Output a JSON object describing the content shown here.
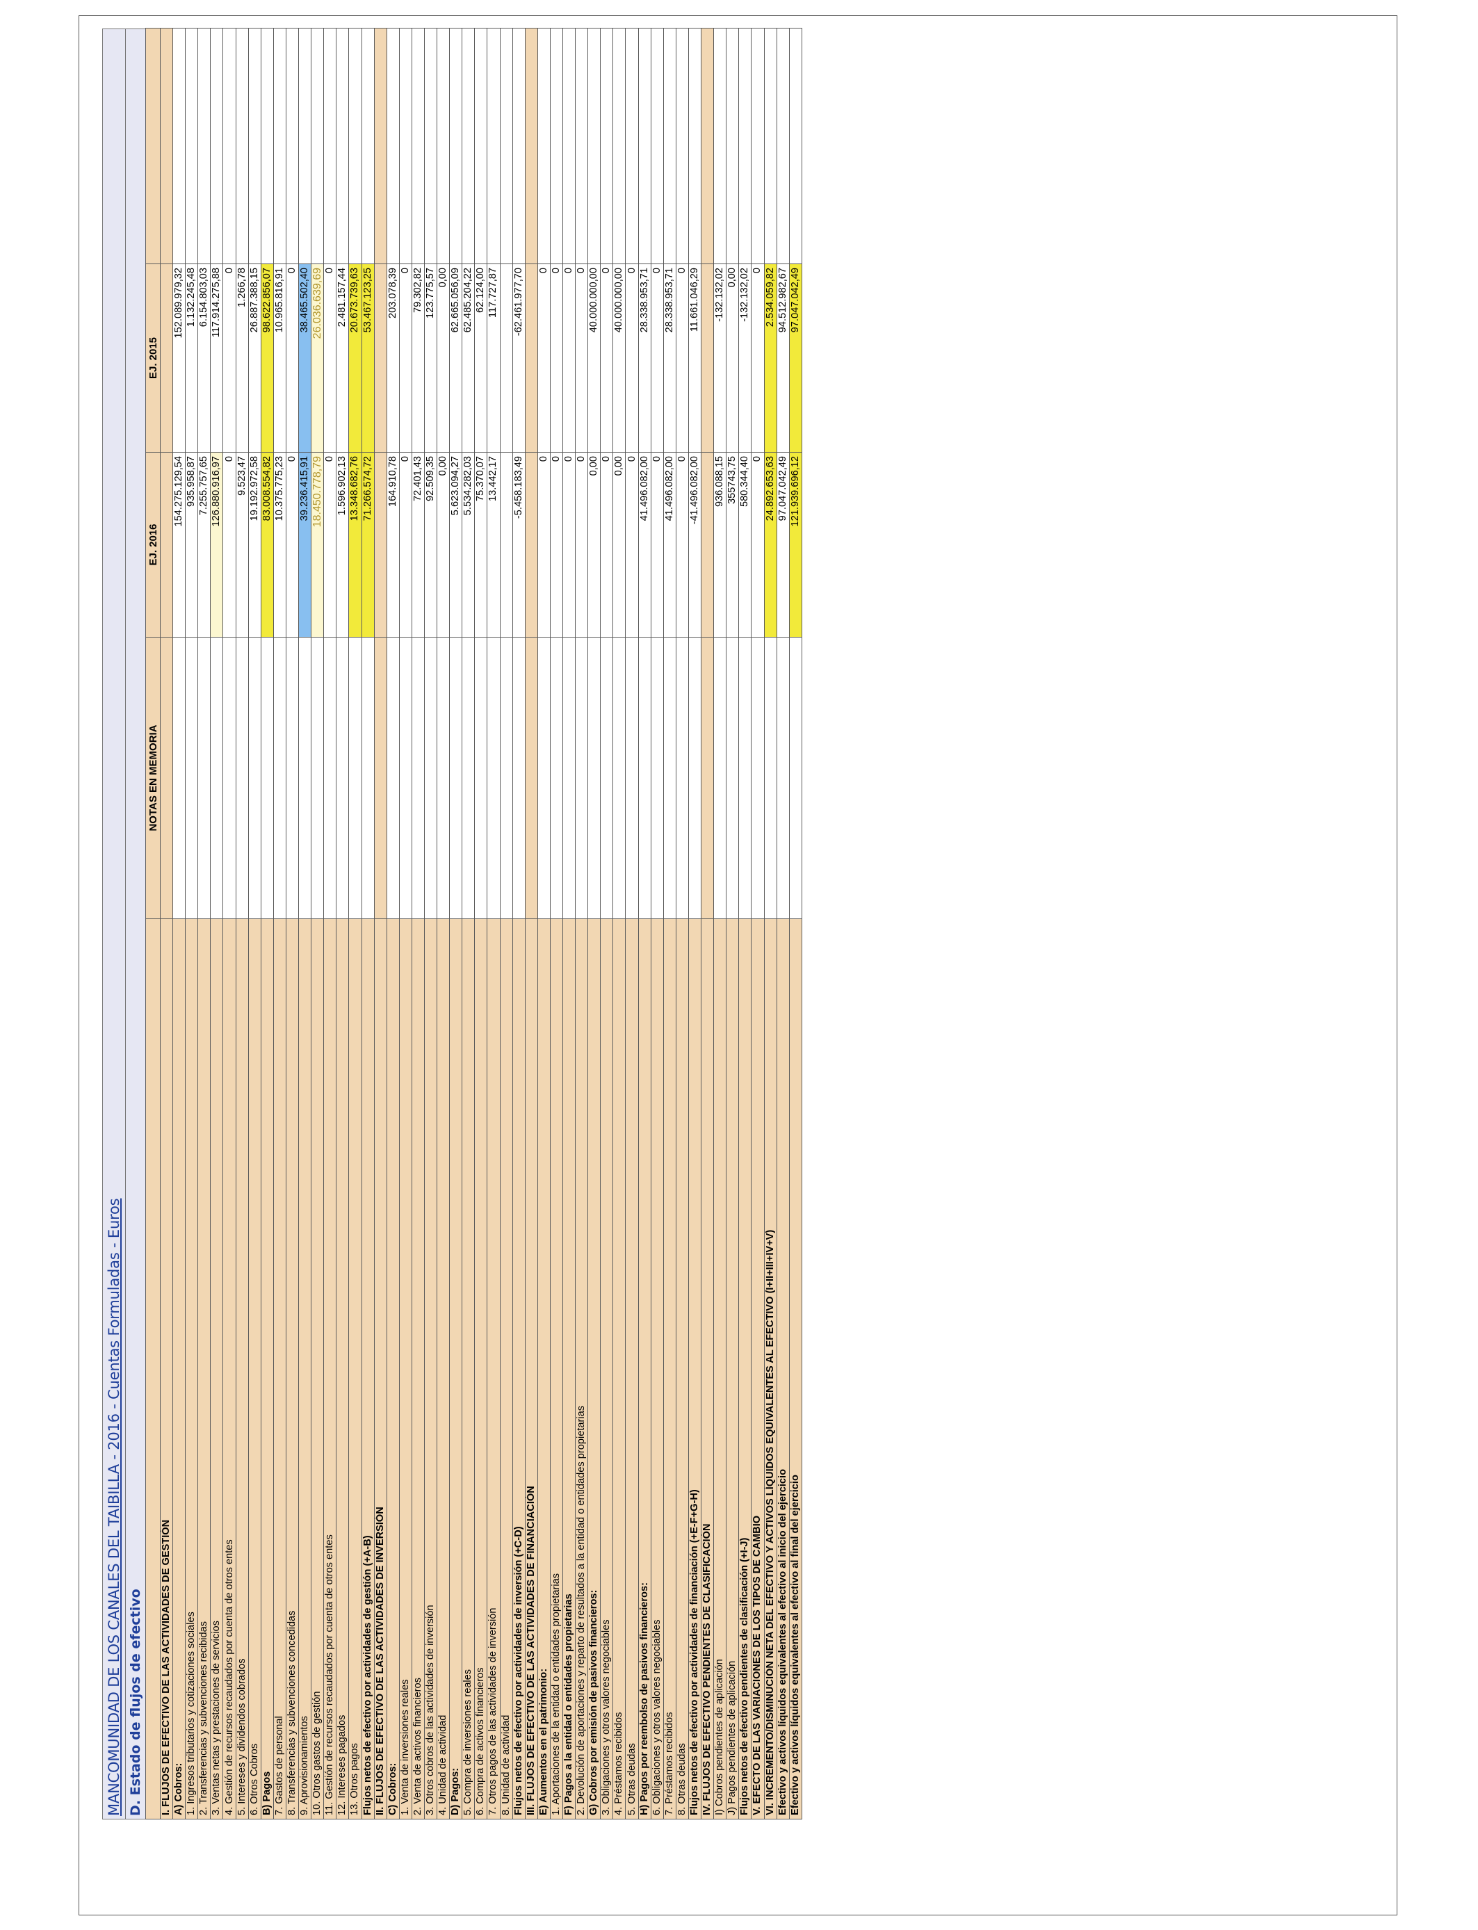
{
  "header": {
    "title": "MANCOMUNIDAD DE LOS CANALES DEL TAIBILLA - 2016 - Cuentas Formuladas - Euros",
    "subtitle": "D. Estado de flujos de efectivo"
  },
  "columns": {
    "notes": "NOTAS EN MEMORIA",
    "y2016": "EJ. 2016",
    "y2015": "EJ. 2015"
  },
  "rows": [
    {
      "label": "I. FLUJOS DE EFECTIVO DE LAS ACTIVIDADES DE GESTIÓN",
      "v2016": "",
      "v2015": "",
      "style": "section"
    },
    {
      "label": "A) Cobros:",
      "v2016": "154.275.129,54",
      "v2015": "152.089.979,32",
      "style": "bold"
    },
    {
      "label": "1. Ingresos tributarios y cotizaciones sociales",
      "v2016": "935.958,87",
      "v2015": "1.132.245,48",
      "style": ""
    },
    {
      "label": "2. Transferencias y subvenciones recibidas",
      "v2016": "7.255.757,65",
      "v2015": "6.154.803,03",
      "style": ""
    },
    {
      "label": "3. Ventas netas y prestaciones de servicios",
      "v2016": "126.880.916,97",
      "v2015": "117.914.275,88",
      "style": "",
      "hl2016": "lightyellow"
    },
    {
      "label": "4. Gestión de recursos recaudados por cuenta de otros entes",
      "v2016": "0",
      "v2015": "0",
      "style": ""
    },
    {
      "label": "5. Intereses y dividendos cobrados",
      "v2016": "9.523,47",
      "v2015": "1.266,78",
      "style": ""
    },
    {
      "label": "6. Otros Cobros",
      "v2016": "19.192.972,58",
      "v2015": "26.887.388,15",
      "style": ""
    },
    {
      "label": "B) Pagos",
      "v2016": "83.008.554,82",
      "v2015": "98.622.856,07",
      "style": "bold",
      "hl2016": "yellow",
      "hl2015": "yellow"
    },
    {
      "label": "7. Gastos de personal",
      "v2016": "10.375.775,23",
      "v2015": "10.965.816,91",
      "style": ""
    },
    {
      "label": "8. Transferencias y subvenciones concedidas",
      "v2016": "0",
      "v2015": "0",
      "style": ""
    },
    {
      "label": "9. Aprovisionamientos",
      "v2016": "39.236.415,91",
      "v2015": "38.465.502,40",
      "style": "",
      "hl2016": "blue",
      "hl2015": "blue"
    },
    {
      "label": "10. Otros gastos de gestión",
      "v2016": "18.450.778,79",
      "v2015": "26.036.639,69",
      "style": "",
      "hl2016": "lightyellow",
      "hl2015": "lightyellow",
      "gold": true
    },
    {
      "label": "11. Gestión de recursos recaudados por cuenta de otros entes",
      "v2016": "0",
      "v2015": "0",
      "style": ""
    },
    {
      "label": "12. Intereses pagados",
      "v2016": "1.596.902,13",
      "v2015": "2.481.157,44",
      "style": ""
    },
    {
      "label": "13. Otros pagos",
      "v2016": "13.348.682,76",
      "v2015": "20.673.739,63",
      "style": "",
      "hl2016": "yellow",
      "hl2015": "yellow"
    },
    {
      "label": "Flujos netos de efectivo por actividades de gestión (+A-B)",
      "v2016": "71.266.574,72",
      "v2015": "53.467.123,25",
      "style": "bold",
      "hl2016": "yellow",
      "hl2015": "yellow"
    },
    {
      "label": "II. FLUJOS DE EFECTIVO DE LAS ACTIVIDADES DE INVERSIÓN",
      "v2016": "",
      "v2015": "",
      "style": "section"
    },
    {
      "label": "C) Cobros:",
      "v2016": "164.910,78",
      "v2015": "203.078,39",
      "style": "bold"
    },
    {
      "label": "1. Venta de inversiones reales",
      "v2016": "0",
      "v2015": "0",
      "style": ""
    },
    {
      "label": "2. Venta de activos financieros",
      "v2016": "72.401,43",
      "v2015": "79.302,82",
      "style": ""
    },
    {
      "label": "3. Otros cobros de las actividades de inversión",
      "v2016": "92.509,35",
      "v2015": "123.775,57",
      "style": ""
    },
    {
      "label": "4. Unidad de actividad",
      "v2016": "0,00",
      "v2015": "0,00",
      "style": ""
    },
    {
      "label": "D) Pagos:",
      "v2016": "5.623.094,27",
      "v2015": "62.665.056,09",
      "style": "bold"
    },
    {
      "label": "5. Compra de inversiones reales",
      "v2016": "5.534.282,03",
      "v2015": "62.485.204,22",
      "style": ""
    },
    {
      "label": "6. Compra de activos financieros",
      "v2016": "75.370,07",
      "v2015": "62.124,00",
      "style": ""
    },
    {
      "label": "7. Otros pagos de las actividades de inversión",
      "v2016": "13.442,17",
      "v2015": "117.727,87",
      "style": ""
    },
    {
      "label": "8. Unidad de actividad",
      "v2016": "",
      "v2015": "",
      "style": ""
    },
    {
      "label": "Flujos netos de efectivo por actividades de inversión (+C-D)",
      "v2016": "-5.458.183,49",
      "v2015": "-62.461.977,70",
      "style": "bold"
    },
    {
      "label": "III. FLUJOS DE EFECTIVO DE LAS ACTIVIDADES DE FINANCIACIÓN",
      "v2016": "",
      "v2015": "",
      "style": "section"
    },
    {
      "label": "E) Aumentos en el patrimonio:",
      "v2016": "0",
      "v2015": "0",
      "style": "bold"
    },
    {
      "label": "1. Aportaciones de la entidad o entidades propietarias",
      "v2016": "0",
      "v2015": "0",
      "style": ""
    },
    {
      "label": "F) Pagos a la entidad o entidades propietarias",
      "v2016": "0",
      "v2015": "0",
      "style": "bold"
    },
    {
      "label": "2. Devolución de aportaciones y reparto de resultados a la entidad o entidades propietarias",
      "v2016": "0",
      "v2015": "0",
      "style": ""
    },
    {
      "label": "G) Cobros por emisión de pasivos financieros:",
      "v2016": "0,00",
      "v2015": "40.000.000,00",
      "style": "bold"
    },
    {
      "label": "3. Obligaciones y otros valores negociables",
      "v2016": "0",
      "v2015": "0",
      "style": ""
    },
    {
      "label": "4. Préstamos recibidos",
      "v2016": "0,00",
      "v2015": "40.000.000,00",
      "style": ""
    },
    {
      "label": "5. Otras deudas",
      "v2016": "0",
      "v2015": "0",
      "style": ""
    },
    {
      "label": "H) Pagos por reembolso de pasivos financieros:",
      "v2016": "41.496.082,00",
      "v2015": "28.338.953,71",
      "style": "bold"
    },
    {
      "label": "6. Obligaciones y otros valores negociables",
      "v2016": "0",
      "v2015": "0",
      "style": ""
    },
    {
      "label": "7. Préstamos recibidos",
      "v2016": "41.496.082,00",
      "v2015": "28.338.953,71",
      "style": ""
    },
    {
      "label": "8. Otras deudas",
      "v2016": "0",
      "v2015": "0",
      "style": ""
    },
    {
      "label": "Flujos netos de efectivo por actividades de financiación (+E-F+G-H)",
      "v2016": "-41.496.082,00",
      "v2015": "11.661.046,29",
      "style": "bold"
    },
    {
      "label": "IV. FLUJOS DE EFECTIVO PENDIENTES DE CLASIFICACIÓN",
      "v2016": "",
      "v2015": "",
      "style": "section"
    },
    {
      "label": "I) Cobros pendientes de aplicación",
      "v2016": "936.088,15",
      "v2015": "-132.132,02",
      "style": ""
    },
    {
      "label": "J) Pagos pendientes de aplicación",
      "v2016": "355743,75",
      "v2015": "0,00",
      "style": ""
    },
    {
      "label": "Flujos netos de efectivo pendientes de clasificación (+I-J)",
      "v2016": "580.344,40",
      "v2015": "-132.132,02",
      "style": "bold"
    },
    {
      "label": "V. EFECTO DE LAS VARIACIONES DE LOS TIPOS DE CAMBIO",
      "v2016": "0",
      "v2015": "0",
      "style": "bold"
    },
    {
      "label": "VI. INCREMENTO/DISMINUCIÓN NETA DEL EFECTIVO Y ACTIVOS LÍQUIDOS EQUIVALENTES AL EFECTIVO (I+II+III+IV+V)",
      "v2016": "24.892.653,63",
      "v2015": "2.534.059,82",
      "style": "bold",
      "hl2016": "yellow",
      "hl2015": "yellow"
    },
    {
      "label": "Efectivo y activos líquidos equivalentes al efectivo al inicio del ejercicio",
      "v2016": "97.047.042,49",
      "v2015": "94.512.982,67",
      "style": "bold"
    },
    {
      "label": "Efectivo y activos líquidos equivalentes al efectivo al final del ejercicio",
      "v2016": "121.939.696,12",
      "v2015": "97.047.042,49",
      "style": "bold",
      "hl2016": "yellow",
      "hl2015": "yellow"
    }
  ],
  "colors": {
    "row_fill": "#f2d7b3",
    "highlight_yellow": "#f2ea3a",
    "highlight_blue": "#88bff0",
    "highlight_light_yellow": "#fcf7d0",
    "title_blue": "#1f3f9a"
  }
}
